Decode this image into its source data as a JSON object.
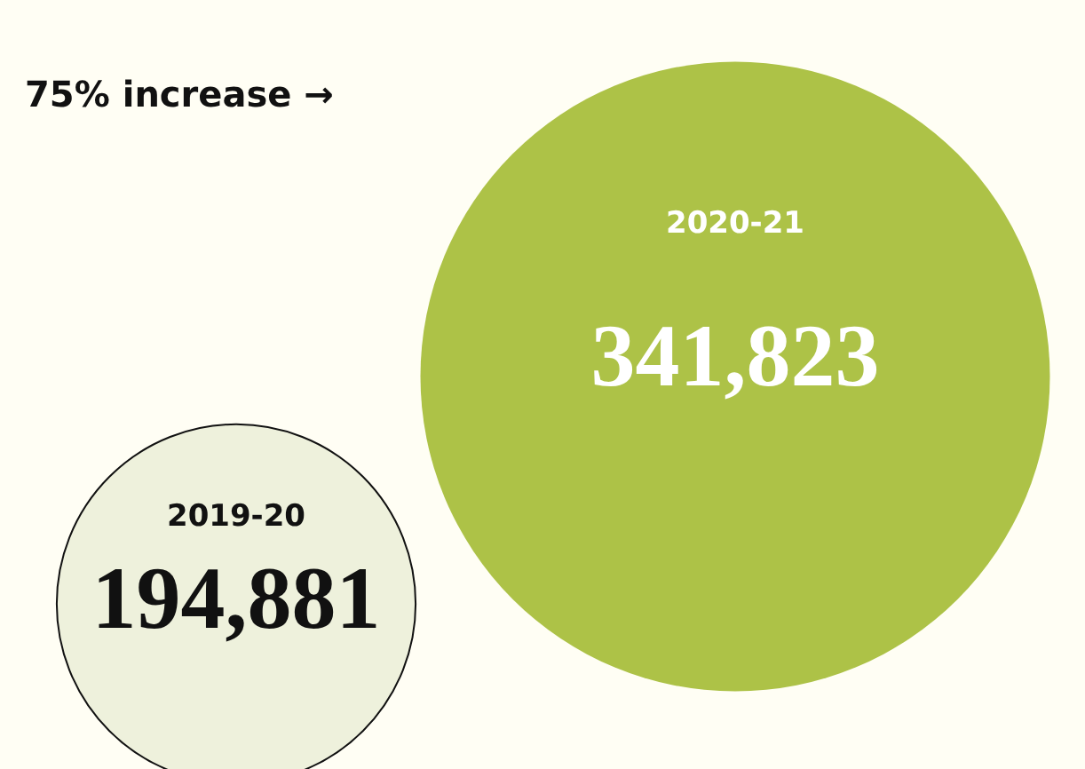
{
  "chart_data": {
    "type": "other",
    "categories": [
      "2019-20",
      "2020-21"
    ],
    "values": [
      194881,
      341823
    ],
    "colors": [
      "#eef1dc",
      "#adc247"
    ],
    "value_labels": [
      "194,881",
      "341,823"
    ],
    "annotations": [
      "75% increase →"
    ]
  }
}
